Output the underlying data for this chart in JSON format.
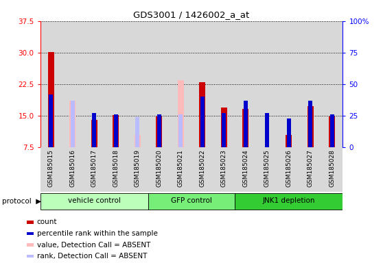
{
  "title": "GDS3001 / 1426002_a_at",
  "samples": [
    "GSM185015",
    "GSM185016",
    "GSM185017",
    "GSM185018",
    "GSM185019",
    "GSM185020",
    "GSM185021",
    "GSM185022",
    "GSM185023",
    "GSM185024",
    "GSM185025",
    "GSM185026",
    "GSM185027",
    "GSM185028"
  ],
  "count_values": [
    30.2,
    0,
    14.0,
    15.1,
    0,
    14.8,
    0,
    23.0,
    17.0,
    16.7,
    0,
    10.5,
    17.2,
    14.8
  ],
  "percentile_pct": [
    42,
    37,
    27,
    26,
    24,
    26,
    26,
    40,
    27,
    37,
    27,
    23,
    37,
    26
  ],
  "absent_value": [
    0,
    18.5,
    0,
    0,
    10.5,
    0,
    23.5,
    0,
    0,
    0,
    0,
    0,
    0,
    0
  ],
  "absent_rank_pct": [
    0,
    37,
    0,
    0,
    24,
    0,
    26,
    0,
    0,
    0,
    0,
    0,
    0,
    0
  ],
  "is_absent": [
    false,
    true,
    false,
    false,
    true,
    false,
    true,
    false,
    false,
    false,
    false,
    false,
    false,
    false
  ],
  "groups": [
    {
      "label": "vehicle control",
      "start": 0,
      "end": 5,
      "color": "#bbffbb"
    },
    {
      "label": "GFP control",
      "start": 5,
      "end": 9,
      "color": "#77ee77"
    },
    {
      "label": "JNK1 depletion",
      "start": 9,
      "end": 14,
      "color": "#33cc33"
    }
  ],
  "ylim_left": [
    7.5,
    37.5
  ],
  "ylim_right": [
    0,
    100
  ],
  "yticks_left": [
    7.5,
    15.0,
    22.5,
    30.0,
    37.5
  ],
  "yticks_right": [
    0,
    25,
    50,
    75,
    100
  ],
  "bar_color_red": "#cc0000",
  "bar_color_pink": "#ffbbbb",
  "bar_color_blue": "#0000cc",
  "bar_color_lightblue": "#bbbbff",
  "col_bg": "#d8d8d8"
}
